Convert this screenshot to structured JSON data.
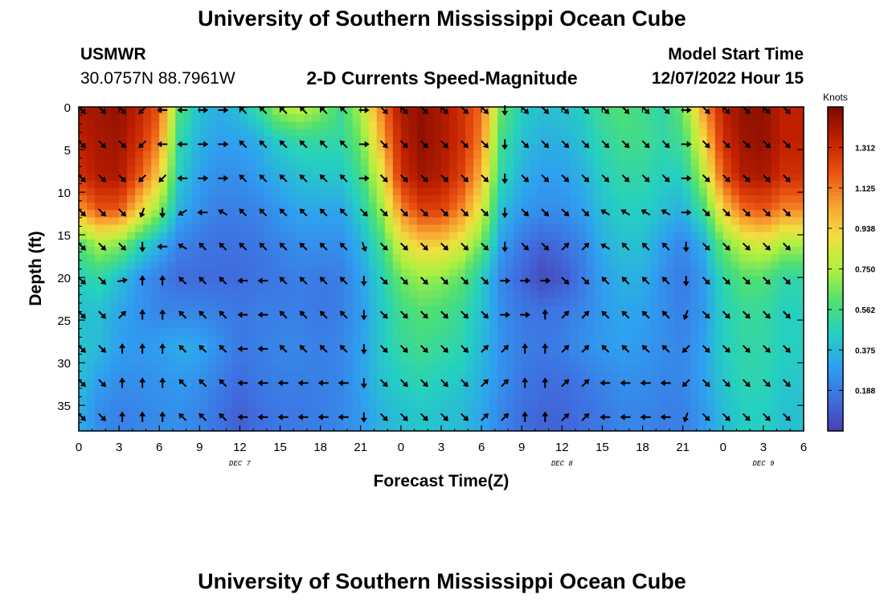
{
  "header": {
    "title": "University of Southern Mississippi Ocean Cube",
    "station": "USMWR",
    "coordinates": "30.0757N  88.7961W",
    "subtitle": "2-D Currents Speed-Magnitude",
    "model_start_label": "Model Start Time",
    "model_start_value": "12/07/2022 Hour 15"
  },
  "footer": {
    "title": "University of Southern Mississippi Ocean Cube"
  },
  "colors": {
    "speed_scale": [
      "#4a3fb0",
      "#3f6fe0",
      "#2fa0f0",
      "#25d0c0",
      "#50e070",
      "#b0f040",
      "#f0e040",
      "#f8a030",
      "#e85010",
      "#c02000",
      "#7a0a00"
    ]
  },
  "chart_data": {
    "type": "heatmap",
    "xlabel": "Forecast Time(Z)",
    "ylabel": "Depth (ft)",
    "x_tick_labels": [
      "0",
      "3",
      "6",
      "9",
      "12",
      "15",
      "18",
      "21",
      "0",
      "3",
      "6",
      "9",
      "12",
      "15",
      "18",
      "21",
      "0",
      "3",
      "6"
    ],
    "x_range_hours": [
      0,
      54
    ],
    "date_labels": [
      {
        "text": "DEC 7",
        "hour": 12
      },
      {
        "text": "DEC 8",
        "hour": 36
      },
      {
        "text": "DEC 9",
        "hour": 51
      }
    ],
    "y_ticks": [
      0,
      5,
      10,
      15,
      20,
      25,
      30,
      35
    ],
    "y_range_ft": [
      0,
      38
    ],
    "colorbar": {
      "title": "Knots",
      "tick_labels": [
        "0.188",
        "0.375",
        "0.562",
        "0.750",
        "0.938",
        "1.125",
        "1.312"
      ],
      "range": [
        0,
        1.5
      ]
    },
    "arrow_depths_ft": [
      0,
      4,
      8,
      12,
      16,
      20,
      24,
      28,
      32,
      36
    ],
    "arrow_hours": [
      0,
      1.5,
      3,
      4.5,
      6,
      7.5,
      9,
      10.5,
      12,
      13.5,
      15,
      16.5,
      18,
      19.5,
      21,
      22.5,
      24,
      25.5,
      27,
      28.5,
      30,
      31.5,
      33,
      34.5,
      36,
      37.5,
      39,
      40.5,
      42,
      43.5,
      45,
      46.5,
      48,
      49.5,
      51,
      52.5
    ],
    "time_hours": [
      0,
      1.5,
      3,
      4.5,
      6,
      7.5,
      9,
      10.5,
      12,
      13.5,
      15,
      16.5,
      18,
      19.5,
      21,
      22.5,
      24,
      25.5,
      27,
      28.5,
      30,
      31.5,
      33,
      34.5,
      36,
      37.5,
      39,
      40.5,
      42,
      43.5,
      45,
      46.5,
      48,
      49.5,
      51,
      52.5
    ],
    "depths_ft": [
      0,
      4,
      8,
      12,
      16,
      20,
      24,
      28,
      32,
      36
    ],
    "speed_knots": [
      [
        1.4,
        1.42,
        1.45,
        1.35,
        1.2,
        0.6,
        0.4,
        0.35,
        0.4,
        0.55,
        0.75,
        0.8,
        0.7,
        0.55,
        0.75,
        1.1,
        1.4,
        1.45,
        1.4,
        1.3,
        1.15,
        0.65,
        0.45,
        0.4,
        0.42,
        0.45,
        0.55,
        0.6,
        0.55,
        0.5,
        0.65,
        1.05,
        1.35,
        1.45,
        1.45,
        1.35
      ],
      [
        1.35,
        1.4,
        1.42,
        1.3,
        1.1,
        0.5,
        0.35,
        0.3,
        0.3,
        0.35,
        0.45,
        0.5,
        0.5,
        0.5,
        0.65,
        1.0,
        1.35,
        1.45,
        1.4,
        1.3,
        1.1,
        0.55,
        0.4,
        0.35,
        0.35,
        0.4,
        0.5,
        0.55,
        0.55,
        0.5,
        0.55,
        0.9,
        1.3,
        1.42,
        1.45,
        1.35
      ],
      [
        1.3,
        1.38,
        1.4,
        1.2,
        0.95,
        0.45,
        0.3,
        0.25,
        0.25,
        0.3,
        0.35,
        0.4,
        0.42,
        0.42,
        0.55,
        0.85,
        1.3,
        1.42,
        1.38,
        1.25,
        1.0,
        0.5,
        0.35,
        0.3,
        0.3,
        0.35,
        0.45,
        0.5,
        0.5,
        0.45,
        0.45,
        0.75,
        1.2,
        1.38,
        1.4,
        1.3
      ],
      [
        1.05,
        1.2,
        1.2,
        0.95,
        0.7,
        0.35,
        0.25,
        0.2,
        0.2,
        0.22,
        0.28,
        0.32,
        0.32,
        0.32,
        0.45,
        0.7,
        1.1,
        1.25,
        1.25,
        1.1,
        0.85,
        0.4,
        0.28,
        0.25,
        0.25,
        0.3,
        0.4,
        0.45,
        0.45,
        0.4,
        0.35,
        0.55,
        0.95,
        1.15,
        1.2,
        1.1
      ],
      [
        0.6,
        0.75,
        0.7,
        0.5,
        0.35,
        0.22,
        0.18,
        0.16,
        0.16,
        0.18,
        0.22,
        0.25,
        0.25,
        0.25,
        0.35,
        0.55,
        0.85,
        0.95,
        0.95,
        0.85,
        0.65,
        0.3,
        0.18,
        0.12,
        0.15,
        0.22,
        0.35,
        0.4,
        0.4,
        0.3,
        0.22,
        0.35,
        0.65,
        0.8,
        0.85,
        0.75
      ],
      [
        0.45,
        0.5,
        0.4,
        0.28,
        0.2,
        0.14,
        0.14,
        0.14,
        0.14,
        0.16,
        0.18,
        0.2,
        0.18,
        0.2,
        0.3,
        0.45,
        0.65,
        0.72,
        0.7,
        0.62,
        0.45,
        0.22,
        0.12,
        0.04,
        0.08,
        0.18,
        0.3,
        0.35,
        0.35,
        0.25,
        0.18,
        0.28,
        0.5,
        0.6,
        0.6,
        0.5
      ],
      [
        0.4,
        0.4,
        0.32,
        0.26,
        0.22,
        0.22,
        0.22,
        0.2,
        0.18,
        0.2,
        0.2,
        0.2,
        0.18,
        0.2,
        0.28,
        0.42,
        0.55,
        0.6,
        0.58,
        0.52,
        0.4,
        0.25,
        0.18,
        0.16,
        0.18,
        0.22,
        0.28,
        0.32,
        0.3,
        0.25,
        0.2,
        0.28,
        0.45,
        0.52,
        0.52,
        0.45
      ],
      [
        0.42,
        0.38,
        0.3,
        0.28,
        0.3,
        0.34,
        0.32,
        0.25,
        0.18,
        0.2,
        0.22,
        0.22,
        0.2,
        0.22,
        0.3,
        0.42,
        0.52,
        0.55,
        0.52,
        0.48,
        0.38,
        0.26,
        0.2,
        0.18,
        0.2,
        0.25,
        0.28,
        0.3,
        0.28,
        0.25,
        0.22,
        0.3,
        0.45,
        0.5,
        0.5,
        0.45
      ],
      [
        0.4,
        0.3,
        0.25,
        0.25,
        0.26,
        0.28,
        0.26,
        0.2,
        0.14,
        0.18,
        0.2,
        0.2,
        0.2,
        0.22,
        0.3,
        0.4,
        0.45,
        0.48,
        0.45,
        0.42,
        0.35,
        0.25,
        0.18,
        0.15,
        0.15,
        0.18,
        0.22,
        0.25,
        0.25,
        0.22,
        0.22,
        0.3,
        0.42,
        0.48,
        0.48,
        0.42
      ],
      [
        0.35,
        0.24,
        0.2,
        0.22,
        0.24,
        0.25,
        0.22,
        0.16,
        0.1,
        0.15,
        0.18,
        0.18,
        0.2,
        0.22,
        0.28,
        0.36,
        0.4,
        0.42,
        0.4,
        0.38,
        0.32,
        0.22,
        0.15,
        0.12,
        0.12,
        0.15,
        0.18,
        0.22,
        0.22,
        0.2,
        0.2,
        0.28,
        0.38,
        0.44,
        0.45,
        0.4
      ]
    ],
    "direction_deg": [
      [
        135,
        135,
        135,
        225,
        270,
        270,
        90,
        90,
        315,
        315,
        315,
        315,
        315,
        315,
        90,
        135,
        135,
        135,
        135,
        135,
        135,
        180,
        135,
        135,
        135,
        135,
        135,
        135,
        135,
        135,
        90,
        135,
        135,
        135,
        135,
        135
      ],
      [
        135,
        135,
        135,
        225,
        270,
        270,
        90,
        90,
        315,
        315,
        315,
        315,
        315,
        315,
        90,
        135,
        135,
        135,
        135,
        135,
        135,
        180,
        135,
        135,
        135,
        135,
        135,
        135,
        135,
        135,
        90,
        135,
        135,
        135,
        135,
        135
      ],
      [
        135,
        135,
        135,
        225,
        225,
        270,
        90,
        90,
        315,
        315,
        315,
        315,
        315,
        315,
        90,
        135,
        135,
        135,
        135,
        135,
        135,
        180,
        135,
        135,
        135,
        135,
        135,
        135,
        135,
        135,
        90,
        135,
        135,
        135,
        135,
        135
      ],
      [
        135,
        135,
        135,
        200,
        180,
        240,
        270,
        300,
        315,
        315,
        315,
        315,
        315,
        315,
        135,
        135,
        135,
        135,
        135,
        135,
        135,
        180,
        135,
        135,
        135,
        135,
        300,
        300,
        300,
        300,
        90,
        135,
        135,
        135,
        135,
        135
      ],
      [
        135,
        135,
        135,
        180,
        270,
        300,
        315,
        315,
        315,
        315,
        315,
        315,
        315,
        315,
        160,
        135,
        135,
        135,
        135,
        135,
        135,
        180,
        135,
        135,
        45,
        45,
        300,
        315,
        315,
        315,
        180,
        135,
        135,
        135,
        135,
        135
      ],
      [
        135,
        135,
        80,
        0,
        0,
        315,
        315,
        315,
        270,
        270,
        315,
        315,
        315,
        315,
        180,
        135,
        135,
        135,
        135,
        135,
        135,
        90,
        90,
        90,
        135,
        135,
        315,
        315,
        315,
        315,
        180,
        135,
        135,
        135,
        135,
        135
      ],
      [
        135,
        135,
        45,
        0,
        0,
        315,
        315,
        315,
        270,
        270,
        315,
        315,
        315,
        315,
        180,
        135,
        135,
        135,
        135,
        135,
        135,
        90,
        90,
        0,
        45,
        45,
        315,
        315,
        315,
        315,
        200,
        135,
        135,
        135,
        135,
        135
      ],
      [
        135,
        135,
        0,
        0,
        0,
        315,
        315,
        315,
        270,
        270,
        315,
        315,
        315,
        315,
        180,
        135,
        135,
        135,
        135,
        135,
        45,
        45,
        0,
        0,
        45,
        45,
        315,
        315,
        315,
        315,
        225,
        135,
        135,
        135,
        135,
        135
      ],
      [
        135,
        135,
        0,
        0,
        0,
        315,
        315,
        315,
        270,
        270,
        270,
        270,
        270,
        270,
        180,
        135,
        135,
        135,
        135,
        135,
        45,
        45,
        0,
        0,
        45,
        45,
        270,
        270,
        270,
        270,
        225,
        135,
        135,
        135,
        135,
        135
      ],
      [
        135,
        135,
        0,
        0,
        0,
        315,
        315,
        315,
        270,
        270,
        270,
        270,
        270,
        270,
        180,
        135,
        135,
        135,
        135,
        135,
        45,
        45,
        0,
        0,
        45,
        45,
        270,
        270,
        270,
        270,
        200,
        135,
        135,
        135,
        135,
        135
      ]
    ]
  }
}
